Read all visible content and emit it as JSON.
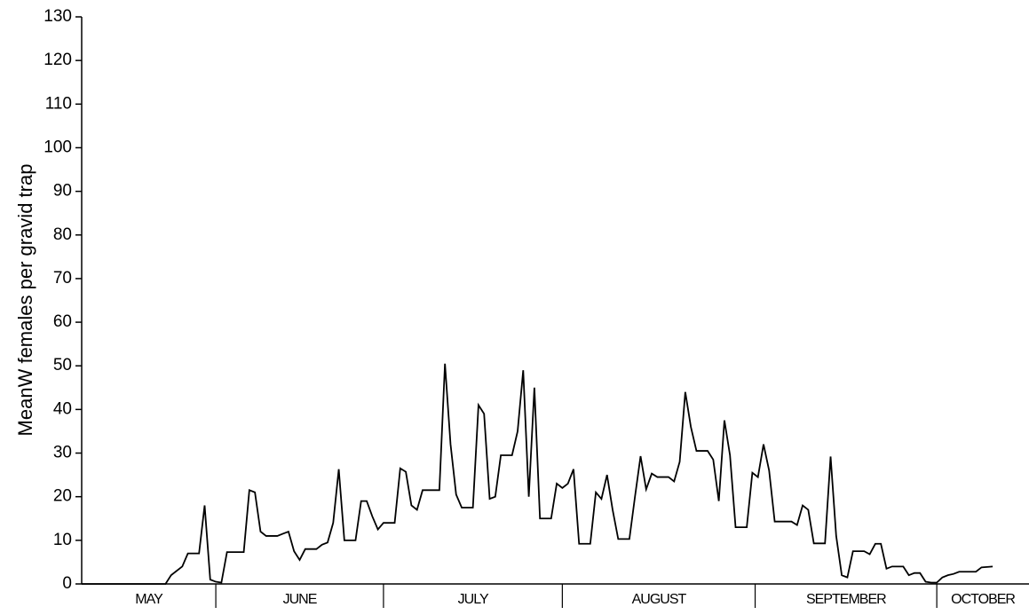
{
  "chart_data": {
    "type": "line",
    "ylabel": "MeanW females per gravid trap",
    "categories": [
      "MAY",
      "JUNE",
      "JULY",
      "AUGUST",
      "SEPTEMBER",
      "OCTOBER"
    ],
    "xlim": [
      0,
      169.5
    ],
    "xticks": [
      24,
      54,
      86,
      120.5,
      153
    ],
    "ylim": [
      0,
      130
    ],
    "yticks": [
      0,
      10,
      20,
      30,
      40,
      50,
      60,
      70,
      80,
      90,
      100,
      110,
      120,
      130
    ],
    "color": "#000000",
    "x": [
      0,
      15,
      16,
      18,
      19,
      21,
      22,
      23,
      24,
      25,
      26,
      29,
      30,
      31,
      32,
      33,
      35,
      36,
      37,
      38,
      39,
      40,
      42,
      43,
      44,
      45,
      46,
      47,
      49,
      50,
      51,
      52,
      53,
      54,
      56,
      57,
      58,
      59,
      60,
      61,
      64,
      65,
      66,
      67,
      68,
      70,
      71,
      72,
      73,
      74,
      75,
      77,
      78,
      79,
      80,
      81,
      82,
      84,
      85,
      86,
      87,
      88,
      89,
      91,
      92,
      93,
      94,
      95,
      96,
      98,
      99,
      100,
      101,
      102,
      103,
      105,
      106,
      107,
      108,
      109,
      110,
      112,
      113,
      114,
      115,
      116,
      117,
      119,
      120,
      121,
      122,
      123,
      124,
      127,
      128,
      129,
      130,
      131,
      133,
      134,
      135,
      136,
      137,
      138,
      140,
      141,
      142,
      143,
      144,
      145,
      147,
      148,
      149,
      150,
      151,
      152,
      153,
      154,
      155,
      156,
      157,
      160,
      161,
      163
    ],
    "values": [
      0,
      0,
      2,
      4,
      7,
      7,
      18,
      1,
      0.5,
      0.3,
      7.3,
      7.3,
      21.5,
      21,
      12,
      11,
      11,
      11.5,
      12,
      7.5,
      5.5,
      8,
      8,
      9,
      9.5,
      14,
      26.3,
      10,
      10,
      19,
      19,
      15.5,
      12.5,
      14,
      14,
      26.5,
      25.7,
      18,
      17,
      21.5,
      21.5,
      50.5,
      32,
      20.5,
      17.5,
      17.5,
      41,
      39,
      19.5,
      20,
      29.5,
      29.5,
      35,
      49,
      20,
      45,
      15,
      15,
      23,
      22,
      23,
      26.3,
      9.2,
      9.2,
      21,
      19.5,
      25,
      17,
      10.3,
      10.3,
      20,
      29.3,
      21.7,
      25.3,
      24.5,
      24.5,
      23.5,
      28,
      44,
      36,
      30.5,
      30.5,
      28.5,
      19,
      37.5,
      29.5,
      13,
      13,
      25.5,
      24.5,
      32,
      26,
      14.3,
      14.3,
      13.5,
      18,
      17,
      9.3,
      9.3,
      29.2,
      11,
      2,
      1.5,
      7.5,
      7.5,
      6.8,
      9.2,
      9.2,
      3.5,
      4,
      4,
      2,
      2.5,
      2.5,
      0.5,
      0.3,
      0.3,
      1.5,
      2,
      2.3,
      2.8,
      2.8,
      3.8,
      4
    ]
  }
}
